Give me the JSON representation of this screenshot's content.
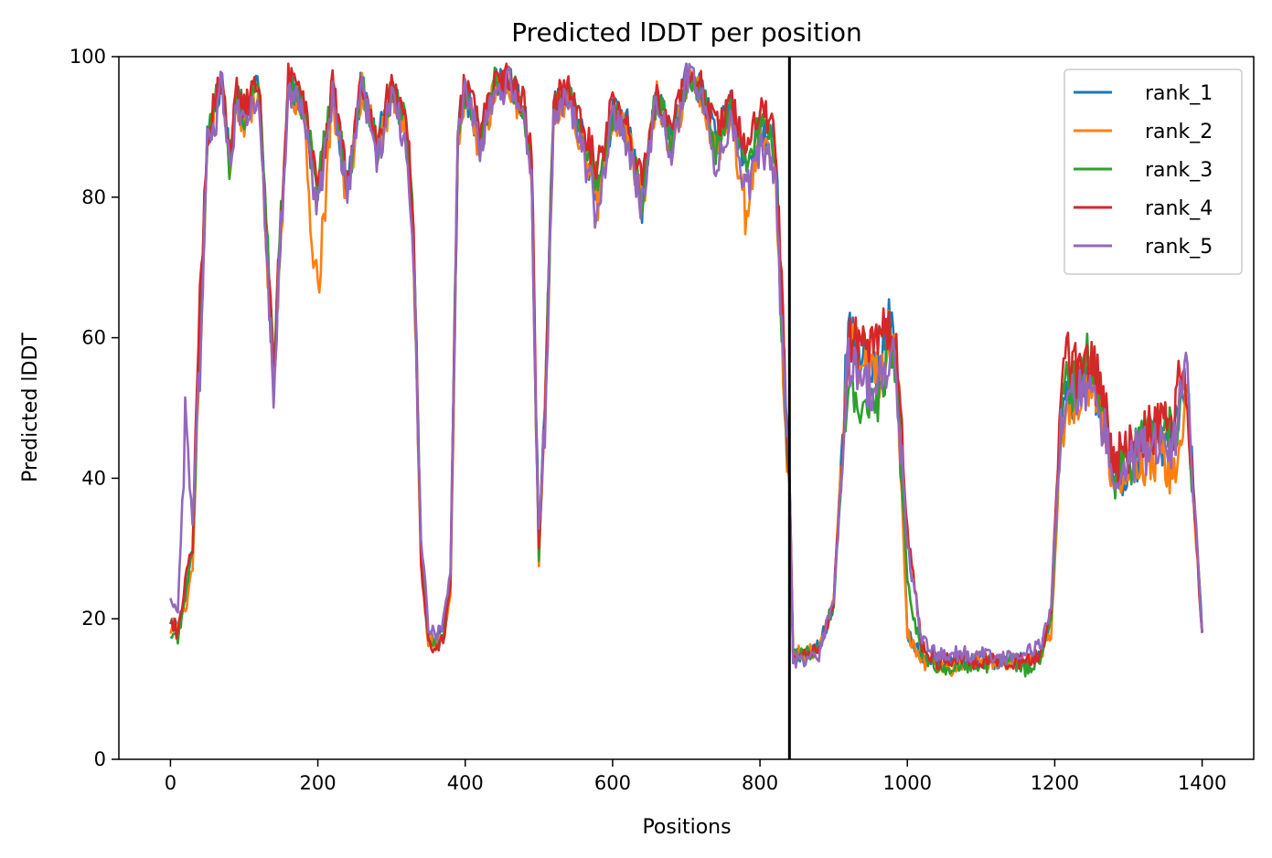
{
  "chart_data": {
    "type": "line",
    "title": "Predicted lDDT per position",
    "xlabel": "Positions",
    "ylabel": "Predicted lDDT",
    "xlim": [
      -70,
      1470
    ],
    "ylim": [
      0,
      100
    ],
    "xticks": [
      0,
      200,
      400,
      600,
      800,
      1000,
      1200,
      1400
    ],
    "yticks": [
      0,
      20,
      40,
      60,
      80,
      100
    ],
    "grid": false,
    "legend_position": "top-right",
    "vertical_lines": [
      {
        "x": 840,
        "color": "#000000"
      }
    ],
    "series": [
      {
        "name": "rank_1",
        "color": "#1f77b4",
        "offset": 0.0,
        "x": [
          0,
          10,
          20,
          30,
          40,
          50,
          60,
          70,
          80,
          90,
          100,
          120,
          140,
          160,
          180,
          200,
          220,
          240,
          260,
          280,
          300,
          320,
          330,
          340,
          350,
          360,
          370,
          380,
          390,
          400,
          420,
          440,
          460,
          480,
          490,
          500,
          510,
          520,
          540,
          560,
          580,
          600,
          620,
          640,
          660,
          680,
          700,
          720,
          740,
          760,
          780,
          800,
          820,
          835,
          840,
          845,
          860,
          880,
          900,
          920,
          940,
          960,
          975,
          985,
          1000,
          1020,
          1040,
          1060,
          1080,
          1100,
          1120,
          1140,
          1160,
          1180,
          1195,
          1210,
          1230,
          1250,
          1270,
          1280,
          1300,
          1320,
          1340,
          1360,
          1370,
          1380,
          1400
        ],
        "y": [
          20,
          19,
          22,
          30,
          62,
          88,
          93,
          97,
          85,
          94,
          92,
          96,
          55,
          96,
          93,
          80,
          95,
          80,
          97,
          88,
          95,
          90,
          75,
          30,
          18,
          17,
          18,
          25,
          90,
          95,
          88,
          96,
          97,
          92,
          85,
          30,
          55,
          93,
          95,
          88,
          80,
          92,
          90,
          80,
          95,
          88,
          97,
          96,
          88,
          93,
          85,
          90,
          88,
          50,
          40,
          15,
          15,
          16,
          22,
          62,
          58,
          55,
          62,
          58,
          18,
          15,
          14,
          14,
          14,
          14,
          14,
          14,
          14,
          15,
          20,
          50,
          52,
          55,
          48,
          40,
          42,
          44,
          46,
          45,
          50,
          52,
          18
        ]
      },
      {
        "name": "rank_2",
        "color": "#ff7f0e",
        "offset": 0.6,
        "x": [
          0,
          10,
          20,
          30,
          40,
          50,
          60,
          70,
          80,
          90,
          100,
          120,
          140,
          160,
          180,
          200,
          220,
          240,
          260,
          280,
          300,
          320,
          330,
          340,
          350,
          360,
          370,
          380,
          390,
          400,
          420,
          440,
          460,
          480,
          490,
          500,
          510,
          520,
          540,
          560,
          580,
          600,
          620,
          640,
          660,
          680,
          700,
          720,
          740,
          760,
          780,
          800,
          820,
          835,
          840,
          845,
          860,
          880,
          900,
          920,
          940,
          960,
          975,
          985,
          1000,
          1020,
          1040,
          1060,
          1080,
          1100,
          1120,
          1140,
          1160,
          1180,
          1195,
          1210,
          1230,
          1250,
          1270,
          1280,
          1300,
          1320,
          1340,
          1360,
          1370,
          1380,
          1400
        ],
        "y": [
          19,
          19,
          21,
          28,
          58,
          87,
          92,
          96,
          84,
          93,
          91,
          95,
          54,
          95,
          92,
          66,
          94,
          79,
          96,
          87,
          94,
          89,
          74,
          28,
          17,
          16,
          17,
          24,
          89,
          94,
          87,
          95,
          96,
          91,
          83,
          28,
          54,
          92,
          94,
          87,
          80,
          91,
          89,
          79,
          94,
          87,
          96,
          95,
          86,
          92,
          78,
          88,
          86,
          48,
          38,
          15,
          15,
          16,
          22,
          60,
          56,
          54,
          60,
          56,
          18,
          14,
          13,
          13,
          14,
          14,
          14,
          14,
          14,
          15,
          18,
          48,
          52,
          54,
          46,
          38,
          40,
          42,
          44,
          40,
          48,
          50,
          18
        ]
      },
      {
        "name": "rank_3",
        "color": "#2ca02c",
        "offset": 1.2,
        "x": [
          0,
          10,
          20,
          30,
          40,
          50,
          60,
          70,
          80,
          90,
          100,
          120,
          140,
          160,
          180,
          200,
          220,
          240,
          260,
          280,
          300,
          320,
          330,
          340,
          350,
          360,
          370,
          380,
          390,
          400,
          420,
          440,
          460,
          480,
          490,
          500,
          510,
          520,
          540,
          560,
          580,
          600,
          620,
          640,
          660,
          680,
          700,
          720,
          740,
          760,
          780,
          800,
          820,
          835,
          840,
          845,
          860,
          880,
          900,
          920,
          940,
          960,
          975,
          985,
          1000,
          1020,
          1040,
          1060,
          1080,
          1100,
          1120,
          1140,
          1160,
          1180,
          1195,
          1210,
          1230,
          1250,
          1270,
          1280,
          1300,
          1320,
          1340,
          1360,
          1370,
          1380,
          1400
        ],
        "y": [
          18,
          17,
          24,
          29,
          60,
          88,
          93,
          97,
          85,
          94,
          92,
          96,
          55,
          96,
          93,
          82,
          95,
          82,
          97,
          86,
          95,
          90,
          75,
          29,
          17,
          16,
          17,
          25,
          90,
          95,
          88,
          96,
          97,
          92,
          84,
          29,
          55,
          93,
          95,
          89,
          82,
          92,
          89,
          80,
          95,
          88,
          97,
          96,
          87,
          93,
          84,
          90,
          87,
          49,
          39,
          15,
          15,
          16,
          22,
          55,
          50,
          52,
          58,
          55,
          25,
          15,
          13,
          13,
          13,
          13,
          14,
          14,
          13,
          14,
          20,
          52,
          54,
          58,
          48,
          40,
          42,
          46,
          48,
          46,
          50,
          52,
          18
        ]
      },
      {
        "name": "rank_4",
        "color": "#d62728",
        "offset": 1.8,
        "x": [
          0,
          10,
          20,
          30,
          40,
          50,
          60,
          70,
          80,
          90,
          100,
          120,
          140,
          160,
          180,
          200,
          220,
          240,
          260,
          280,
          300,
          320,
          330,
          340,
          350,
          360,
          370,
          380,
          390,
          400,
          420,
          440,
          460,
          480,
          490,
          500,
          510,
          520,
          540,
          560,
          580,
          600,
          620,
          640,
          660,
          680,
          700,
          720,
          740,
          760,
          780,
          800,
          820,
          835,
          840,
          845,
          860,
          880,
          900,
          920,
          940,
          960,
          975,
          985,
          1000,
          1020,
          1040,
          1060,
          1080,
          1100,
          1120,
          1140,
          1160,
          1180,
          1195,
          1210,
          1230,
          1250,
          1270,
          1280,
          1300,
          1320,
          1340,
          1360,
          1370,
          1380,
          1400
        ],
        "y": [
          20,
          18,
          25,
          30,
          65,
          89,
          94,
          97,
          86,
          95,
          93,
          96,
          56,
          97,
          94,
          80,
          96,
          82,
          97,
          88,
          96,
          91,
          77,
          28,
          17,
          16,
          17,
          25,
          91,
          96,
          90,
          96,
          97,
          93,
          86,
          30,
          56,
          94,
          95,
          90,
          84,
          93,
          90,
          82,
          95,
          90,
          97,
          96,
          90,
          94,
          88,
          92,
          90,
          52,
          40,
          15,
          15,
          16,
          22,
          60,
          58,
          60,
          62,
          58,
          32,
          16,
          14,
          14,
          14,
          14,
          14,
          14,
          14,
          15,
          20,
          58,
          55,
          56,
          50,
          42,
          44,
          46,
          48,
          46,
          55,
          52,
          18
        ]
      },
      {
        "name": "rank_5",
        "color": "#9467bd",
        "offset": 2.4,
        "x": [
          0,
          10,
          20,
          30,
          40,
          50,
          60,
          70,
          80,
          90,
          100,
          120,
          140,
          160,
          180,
          200,
          220,
          240,
          260,
          280,
          300,
          320,
          330,
          340,
          350,
          360,
          370,
          380,
          390,
          400,
          420,
          440,
          460,
          480,
          490,
          500,
          510,
          520,
          540,
          560,
          580,
          600,
          620,
          640,
          660,
          680,
          700,
          720,
          740,
          760,
          780,
          800,
          820,
          835,
          840,
          845,
          860,
          880,
          900,
          920,
          940,
          960,
          975,
          985,
          1000,
          1020,
          1040,
          1060,
          1080,
          1100,
          1120,
          1140,
          1160,
          1180,
          1195,
          1210,
          1230,
          1250,
          1270,
          1280,
          1300,
          1320,
          1340,
          1360,
          1370,
          1380,
          1400
        ],
        "y": [
          24,
          20,
          48,
          33,
          56,
          88,
          90,
          97,
          84,
          93,
          91,
          95,
          52,
          96,
          92,
          78,
          94,
          80,
          96,
          85,
          94,
          88,
          72,
          32,
          19,
          18,
          19,
          27,
          88,
          95,
          87,
          95,
          96,
          91,
          82,
          32,
          52,
          92,
          94,
          86,
          78,
          91,
          88,
          78,
          94,
          86,
          97,
          95,
          84,
          91,
          80,
          87,
          84,
          50,
          40,
          14,
          14,
          15,
          22,
          57,
          54,
          53,
          58,
          55,
          30,
          17,
          15,
          15,
          15,
          15,
          14,
          15,
          15,
          16,
          22,
          50,
          52,
          52,
          46,
          38,
          42,
          44,
          46,
          44,
          50,
          55,
          18
        ]
      }
    ]
  }
}
